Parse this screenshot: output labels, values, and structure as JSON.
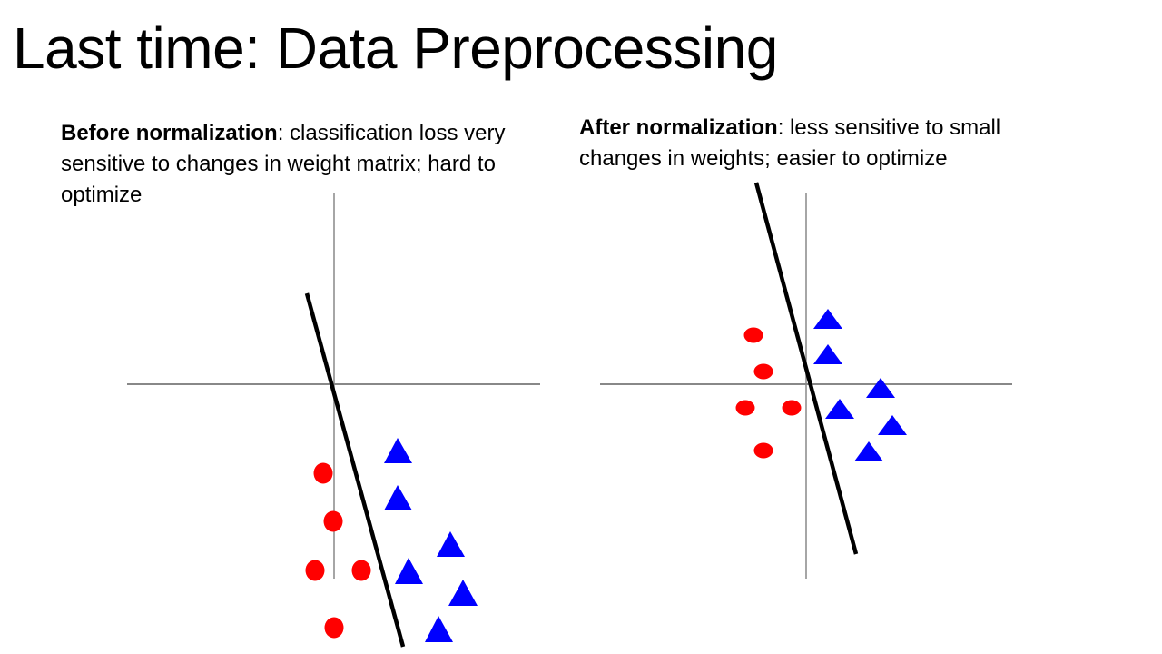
{
  "slide": {
    "title": "Last time: Data Preprocessing"
  },
  "panels": [
    {
      "heading": "Before normalization",
      "description": ": classification loss very sensitive to changes in weight matrix; hard to optimize"
    },
    {
      "heading": "After normalization",
      "description": ": less sensitive to small changes in weights; easier to optimize"
    }
  ],
  "colors": {
    "class_a": "#ff0000",
    "class_b": "#0000ff",
    "axes": "#888888",
    "boundary": "#000000"
  }
}
